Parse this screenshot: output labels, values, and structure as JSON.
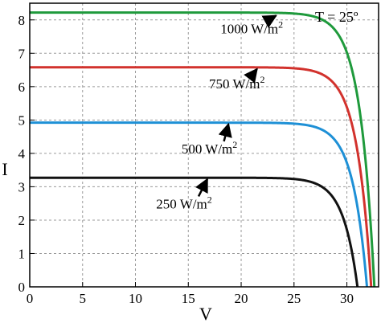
{
  "chart_data": {
    "type": "line",
    "title": "",
    "xlabel": "V",
    "ylabel": "I",
    "xlim": [
      0,
      33
    ],
    "ylim": [
      0,
      8.5
    ],
    "x_ticks": [
      0,
      5,
      10,
      15,
      20,
      25,
      30
    ],
    "y_ticks": [
      0,
      1,
      2,
      3,
      4,
      5,
      6,
      7,
      8
    ],
    "grid": true,
    "condition_label": "T = 25º",
    "series": [
      {
        "name": "1000 W/m2",
        "label_text": "1000 W/m",
        "label_sup": "2",
        "color": "#1f9a3c",
        "Isc": 8.22,
        "Voc": 32.6,
        "knee_scale": 1.35,
        "label_anchor": [
          23.3,
          8.2
        ],
        "label_pos": [
          21.0,
          7.6
        ]
      },
      {
        "name": "750 W/m2",
        "label_text": "750 W/m",
        "label_sup": "2",
        "color": "#d2322d",
        "Isc": 6.58,
        "Voc": 32.3,
        "knee_scale": 1.35,
        "label_anchor": [
          21.5,
          6.6
        ],
        "label_pos": [
          19.6,
          5.95
        ]
      },
      {
        "name": "500 W/m2",
        "label_text": "500 W/m",
        "label_sup": "2",
        "color": "#1e90d6",
        "Isc": 4.92,
        "Voc": 31.9,
        "knee_scale": 1.35,
        "label_anchor": [
          18.8,
          4.95
        ],
        "label_pos": [
          17.0,
          4.0
        ]
      },
      {
        "name": "250 W/m2",
        "label_text": "250 W/m",
        "label_sup": "2",
        "color": "#111111",
        "Isc": 3.27,
        "Voc": 31.0,
        "knee_scale": 1.35,
        "label_anchor": [
          16.8,
          3.3
        ],
        "label_pos": [
          14.6,
          2.35
        ]
      }
    ]
  }
}
